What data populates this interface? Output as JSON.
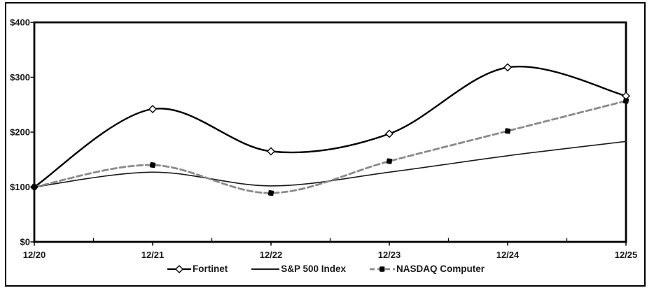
{
  "chart_data": {
    "type": "line",
    "title": "",
    "xlabel": "",
    "ylabel": "",
    "x_labels": [
      "12/20",
      "12/21",
      "12/22",
      "12/23",
      "12/24",
      "12/25"
    ],
    "y_tick_labels": [
      "$0",
      "$100",
      "$200",
      "$300",
      "$400"
    ],
    "y_tick_values": [
      0,
      100,
      200,
      300,
      400
    ],
    "ylim": [
      0,
      400
    ],
    "grid": false,
    "smooth_lines": true,
    "legend_position": "bottom-center",
    "plot_border_color": "#000000",
    "series": [
      {
        "name": "Fortinet",
        "line_style": "solid",
        "line_color": "#000000",
        "line_width": 2.4,
        "marker": "open-diamond",
        "marker_fill": "#ffffff",
        "marker_stroke": "#000000",
        "values": [
          100,
          242,
          165,
          197,
          318,
          266
        ]
      },
      {
        "name": "S&P 500 Index",
        "line_style": "solid",
        "line_color": "#1a1a1a",
        "line_width": 1.6,
        "marker": "none",
        "values": [
          100,
          127,
          102,
          127,
          157,
          183
        ]
      },
      {
        "name": "NASDAQ Computer",
        "line_style": "dashed",
        "line_color": "#8a8a8a",
        "line_width": 2.8,
        "marker": "filled-square",
        "marker_fill": "#000000",
        "marker_stroke": "#000000",
        "values": [
          100,
          140,
          89,
          147,
          202,
          257
        ]
      }
    ]
  }
}
